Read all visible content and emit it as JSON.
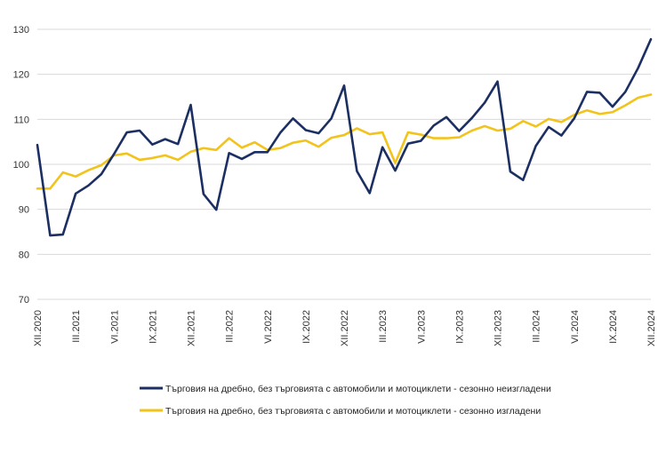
{
  "chart_data": {
    "type": "line",
    "title": "",
    "xlabel": "",
    "ylabel": "",
    "ylim": [
      70,
      130
    ],
    "y_ticks": [
      70,
      80,
      90,
      100,
      110,
      120,
      130
    ],
    "grid": true,
    "legend_position": "bottom",
    "x": [
      "XII.2020",
      "I.2021",
      "II.2021",
      "III.2021",
      "IV.2021",
      "V.2021",
      "VI.2021",
      "VII.2021",
      "VIII.2021",
      "IX.2021",
      "X.2021",
      "XI.2021",
      "XII.2021",
      "I.2022",
      "II.2022",
      "III.2022",
      "IV.2022",
      "V.2022",
      "VI.2022",
      "VII.2022",
      "VIII.2022",
      "IX.2022",
      "X.2022",
      "XI.2022",
      "XII.2022",
      "I.2023",
      "II.2023",
      "III.2023",
      "IV.2023",
      "V.2023",
      "VI.2023",
      "VII.2023",
      "VIII.2023",
      "IX.2023",
      "X.2023",
      "XI.2023",
      "XII.2023",
      "I.2024",
      "II.2024",
      "III.2024",
      "IV.2024",
      "V.2024",
      "VI.2024",
      "VII.2024",
      "VIII.2024",
      "IX.2024",
      "X.2024",
      "XI.2024",
      "XII.2024"
    ],
    "x_tick_labels": [
      "XII.2020",
      "III.2021",
      "VI.2021",
      "IX.2021",
      "XII.2021",
      "III.2022",
      "VI.2022",
      "IX.2022",
      "XII.2022",
      "III.2023",
      "VI.2023",
      "IX.2023",
      "XII.2023",
      "III.2024",
      "VI.2024",
      "IX.2024",
      "XII.2024"
    ],
    "series": [
      {
        "name": "Търговия на дребно, без търговията с автомобили и мотоциклети - сезонно неизгладени",
        "color": "#1c2f63",
        "values": [
          104.3,
          84.2,
          84.4,
          93.5,
          95.3,
          97.8,
          102.3,
          107.1,
          107.5,
          104.4,
          105.6,
          104.5,
          113.2,
          93.4,
          89.9,
          102.5,
          101.2,
          102.7,
          102.7,
          107.0,
          110.2,
          107.6,
          106.9,
          110.2,
          117.5,
          98.5,
          93.6,
          103.8,
          98.6,
          104.6,
          105.2,
          108.6,
          110.5,
          107.4,
          110.3,
          113.7,
          118.4,
          98.4,
          96.5,
          104.1,
          108.3,
          106.4,
          110.2,
          116.1,
          115.9,
          112.8,
          116.1,
          121.4,
          127.8
        ]
      },
      {
        "name": "Търговия на дребно, без търговията с автомобили и мотоциклети - сезонно изгладени",
        "color": "#f2c31a",
        "values": [
          94.6,
          94.6,
          98.2,
          97.3,
          98.7,
          99.8,
          102.0,
          102.4,
          101.0,
          101.4,
          102.0,
          101.0,
          102.8,
          103.6,
          103.2,
          105.8,
          103.7,
          104.9,
          103.2,
          103.6,
          104.8,
          105.3,
          103.9,
          105.9,
          106.5,
          108.0,
          106.7,
          107.1,
          100.3,
          107.1,
          106.6,
          105.8,
          105.8,
          106.0,
          107.5,
          108.5,
          107.5,
          107.9,
          109.6,
          108.4,
          110.1,
          109.4,
          111.0,
          112.0,
          111.2,
          111.6,
          113.1,
          114.8,
          115.5
        ]
      }
    ]
  }
}
